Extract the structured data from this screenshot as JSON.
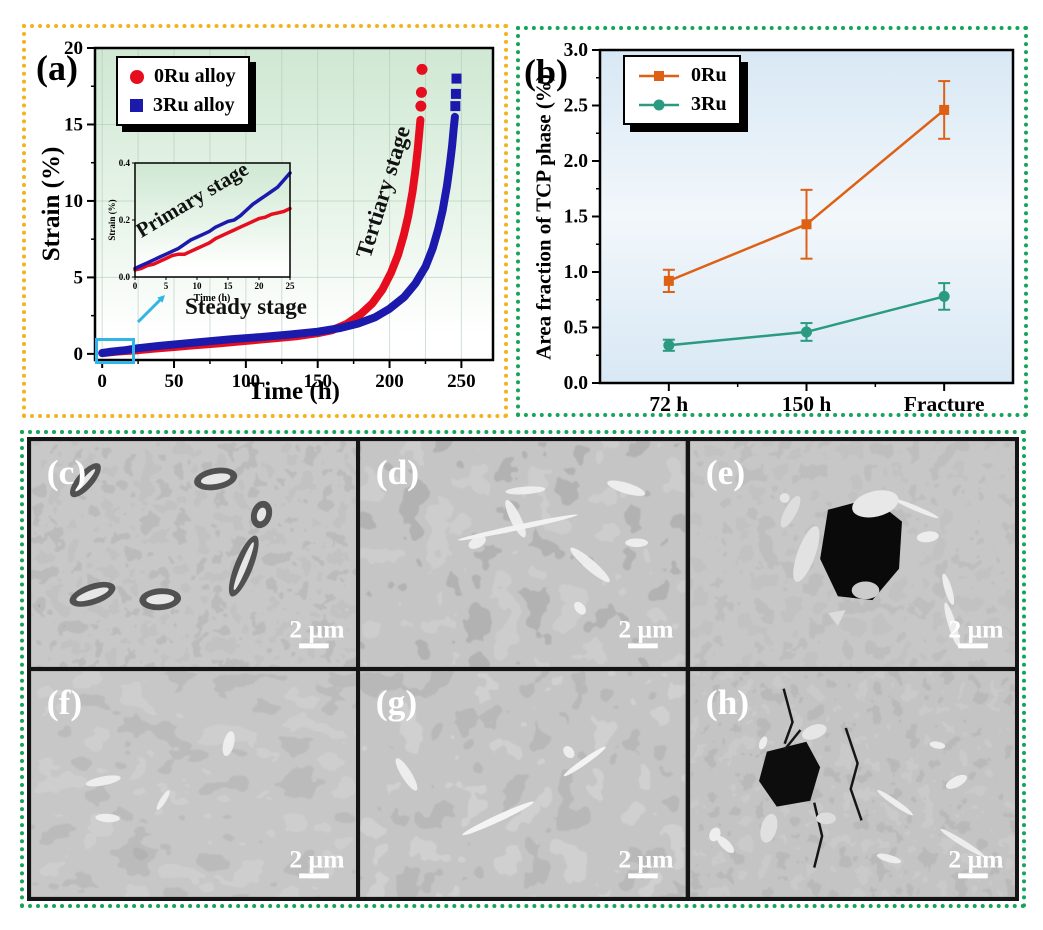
{
  "chart_data": [
    {
      "id": "a",
      "type": "scatter",
      "panel_label": "(a)",
      "xlabel": "Time (h)",
      "ylabel": "Strain (%)",
      "xlim": [
        -5,
        272
      ],
      "ylim": [
        -0.4,
        20
      ],
      "xticks": [
        0,
        50,
        100,
        150,
        200,
        250
      ],
      "yticks": [
        0,
        5,
        10,
        15,
        20
      ],
      "x_minor_step": 25,
      "y_grid_lines": [
        5,
        10,
        15
      ],
      "grid": true,
      "legend_position": "top-left",
      "plot_bg_top": "#cfe8d3",
      "plot_bg_bottom": "#ffffff",
      "annotations": [
        "Primary stage",
        "Steady stage",
        "Tertiary stage"
      ],
      "zoom_box_color": "#30b5e8",
      "series": [
        {
          "name": "0Ru alloy",
          "color": "#e60e1e",
          "marker": "circle",
          "line_points": [
            [
              0,
              0.05
            ],
            [
              5,
              0.1
            ],
            [
              10,
              0.14
            ],
            [
              15,
              0.18
            ],
            [
              20,
              0.21
            ],
            [
              25,
              0.24
            ],
            [
              35,
              0.33
            ],
            [
              50,
              0.45
            ],
            [
              65,
              0.57
            ],
            [
              80,
              0.68
            ],
            [
              100,
              0.85
            ],
            [
              120,
              1.02
            ],
            [
              135,
              1.15
            ],
            [
              150,
              1.35
            ],
            [
              160,
              1.55
            ],
            [
              170,
              1.95
            ],
            [
              180,
              2.6
            ],
            [
              188,
              3.3
            ],
            [
              195,
              4.2
            ],
            [
              201,
              5.3
            ],
            [
              206,
              6.5
            ],
            [
              210,
              7.8
            ],
            [
              213,
              9.0
            ],
            [
              216,
              10.6
            ],
            [
              218,
              12.0
            ],
            [
              219.5,
              13.3
            ],
            [
              220.5,
              14.3
            ],
            [
              221.5,
              15.3
            ]
          ],
          "tail_points": [
            [
              221.8,
              16.2
            ],
            [
              222.2,
              17.1
            ],
            [
              222.6,
              18.6
            ]
          ]
        },
        {
          "name": "3Ru alloy",
          "color": "#1b1aad",
          "marker": "square",
          "line_points": [
            [
              0,
              0.06
            ],
            [
              5,
              0.13
            ],
            [
              10,
              0.18
            ],
            [
              15,
              0.23
            ],
            [
              20,
              0.3
            ],
            [
              25,
              0.37
            ],
            [
              40,
              0.53
            ],
            [
              55,
              0.66
            ],
            [
              70,
              0.79
            ],
            [
              90,
              0.96
            ],
            [
              110,
              1.1
            ],
            [
              130,
              1.26
            ],
            [
              150,
              1.45
            ],
            [
              165,
              1.68
            ],
            [
              178,
              1.98
            ],
            [
              190,
              2.4
            ],
            [
              200,
              2.95
            ],
            [
              210,
              3.7
            ],
            [
              218,
              4.6
            ],
            [
              225,
              5.7
            ],
            [
              230,
              6.9
            ],
            [
              234,
              8.2
            ],
            [
              237,
              9.4
            ],
            [
              240,
              11.0
            ],
            [
              242,
              12.4
            ],
            [
              243.5,
              13.6
            ],
            [
              244.5,
              14.6
            ],
            [
              245.5,
              15.5
            ]
          ],
          "tail_points": [
            [
              245.8,
              16.2
            ],
            [
              246.2,
              17.0
            ],
            [
              246.6,
              18.0
            ]
          ]
        }
      ],
      "inset": {
        "xlabel": "Time (h)",
        "ylabel": "Strain (%)",
        "xlim": [
          0,
          25
        ],
        "ylim": [
          0,
          0.4
        ],
        "xticks": [
          0,
          5,
          10,
          15,
          20,
          25
        ],
        "yticks": [
          "0.0",
          "0.2",
          "0.4"
        ],
        "series": [
          {
            "name": "0Ru alloy",
            "color": "#e60e1e",
            "points": [
              [
                0,
                0.025
              ],
              [
                1,
                0.03
              ],
              [
                2,
                0.04
              ],
              [
                3,
                0.045
              ],
              [
                4,
                0.055
              ],
              [
                5,
                0.065
              ],
              [
                6,
                0.075
              ],
              [
                7,
                0.08
              ],
              [
                8,
                0.08
              ],
              [
                9,
                0.09
              ],
              [
                10,
                0.1
              ],
              [
                11,
                0.11
              ],
              [
                12,
                0.12
              ],
              [
                13,
                0.135
              ],
              [
                14,
                0.145
              ],
              [
                15,
                0.155
              ],
              [
                16,
                0.165
              ],
              [
                17,
                0.175
              ],
              [
                18,
                0.185
              ],
              [
                19,
                0.195
              ],
              [
                20,
                0.205
              ],
              [
                21,
                0.21
              ],
              [
                22,
                0.22
              ],
              [
                23,
                0.225
              ],
              [
                24,
                0.23
              ],
              [
                25,
                0.24
              ]
            ]
          },
          {
            "name": "3Ru alloy",
            "color": "#1b1aad",
            "points": [
              [
                0,
                0.03
              ],
              [
                1,
                0.04
              ],
              [
                2,
                0.05
              ],
              [
                3,
                0.06
              ],
              [
                4,
                0.07
              ],
              [
                5,
                0.08
              ],
              [
                6,
                0.09
              ],
              [
                7,
                0.1
              ],
              [
                8,
                0.115
              ],
              [
                9,
                0.13
              ],
              [
                10,
                0.14
              ],
              [
                11,
                0.15
              ],
              [
                12,
                0.16
              ],
              [
                13,
                0.175
              ],
              [
                14,
                0.185
              ],
              [
                15,
                0.195
              ],
              [
                16,
                0.2
              ],
              [
                17,
                0.215
              ],
              [
                18,
                0.235
              ],
              [
                19,
                0.255
              ],
              [
                20,
                0.27
              ],
              [
                21,
                0.285
              ],
              [
                22,
                0.3
              ],
              [
                23,
                0.315
              ],
              [
                24,
                0.34
              ],
              [
                25,
                0.365
              ]
            ]
          }
        ]
      }
    },
    {
      "id": "b",
      "type": "line",
      "panel_label": "(b)",
      "xlabel": "",
      "ylabel": "Area fraction of TCP phase (%)",
      "categories": [
        "72 h",
        "150 h",
        "Fracture"
      ],
      "ylim": [
        0,
        3.0
      ],
      "yticks": [
        "0.0",
        "0.5",
        "1.0",
        "1.5",
        "2.0",
        "2.5",
        "3.0"
      ],
      "y_minor_step": 0.25,
      "legend_position": "top-left",
      "plot_bg": "#d8e8f4",
      "series": [
        {
          "name": "0Ru",
          "color": "#de6014",
          "marker": "square",
          "values": [
            0.92,
            1.43,
            2.46
          ],
          "errors": [
            0.1,
            0.31,
            0.26
          ]
        },
        {
          "name": "3Ru",
          "color": "#2a9a80",
          "marker": "circle",
          "values": [
            0.34,
            0.46,
            0.78
          ],
          "errors": [
            0.05,
            0.08,
            0.12
          ]
        }
      ]
    }
  ],
  "micrographs": [
    {
      "label": "(c)",
      "scale_label": "2 μm"
    },
    {
      "label": "(d)",
      "scale_label": "2 μm"
    },
    {
      "label": "(e)",
      "scale_label": "2 μm",
      "has_cavity": true
    },
    {
      "label": "(f)",
      "scale_label": "2 μm"
    },
    {
      "label": "(g)",
      "scale_label": "2 μm"
    },
    {
      "label": "(h)",
      "scale_label": "2 μm",
      "has_cavity": true,
      "has_cracks": true
    }
  ],
  "styles": {
    "border_a": "#f3b31b",
    "border_green": "#16a35b",
    "arrow_color": "#30b5e8"
  }
}
